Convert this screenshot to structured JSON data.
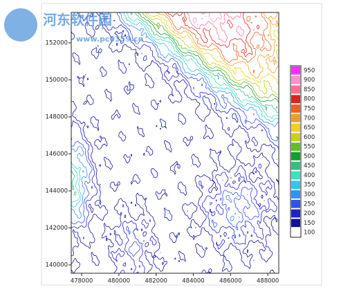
{
  "chart_data": {
    "type": "contour",
    "watermark": [
      "河东软件园",
      "www.pc0359.cn"
    ],
    "xlim": [
      477440,
      488590
    ],
    "ylim": [
      139550,
      153640
    ],
    "xticks": [
      478000,
      480000,
      482000,
      484000,
      486000,
      488000
    ],
    "yticks": [
      140000,
      142000,
      144000,
      146000,
      148000,
      150000,
      152000
    ],
    "levels": [
      100,
      150,
      200,
      250,
      300,
      350,
      400,
      450,
      500,
      550,
      600,
      650,
      700,
      750,
      800,
      850,
      900,
      950
    ],
    "colors": [
      "#ffffff",
      "#1010a0",
      "#2020d0",
      "#3050f0",
      "#3090ff",
      "#30c8e8",
      "#40e0c0",
      "#30c080",
      "#10a030",
      "#60c020",
      "#c8d020",
      "#f0d020",
      "#f0a020",
      "#f06020",
      "#e02020",
      "#ff7090",
      "#ff90d0",
      "#ff30ff"
    ]
  }
}
